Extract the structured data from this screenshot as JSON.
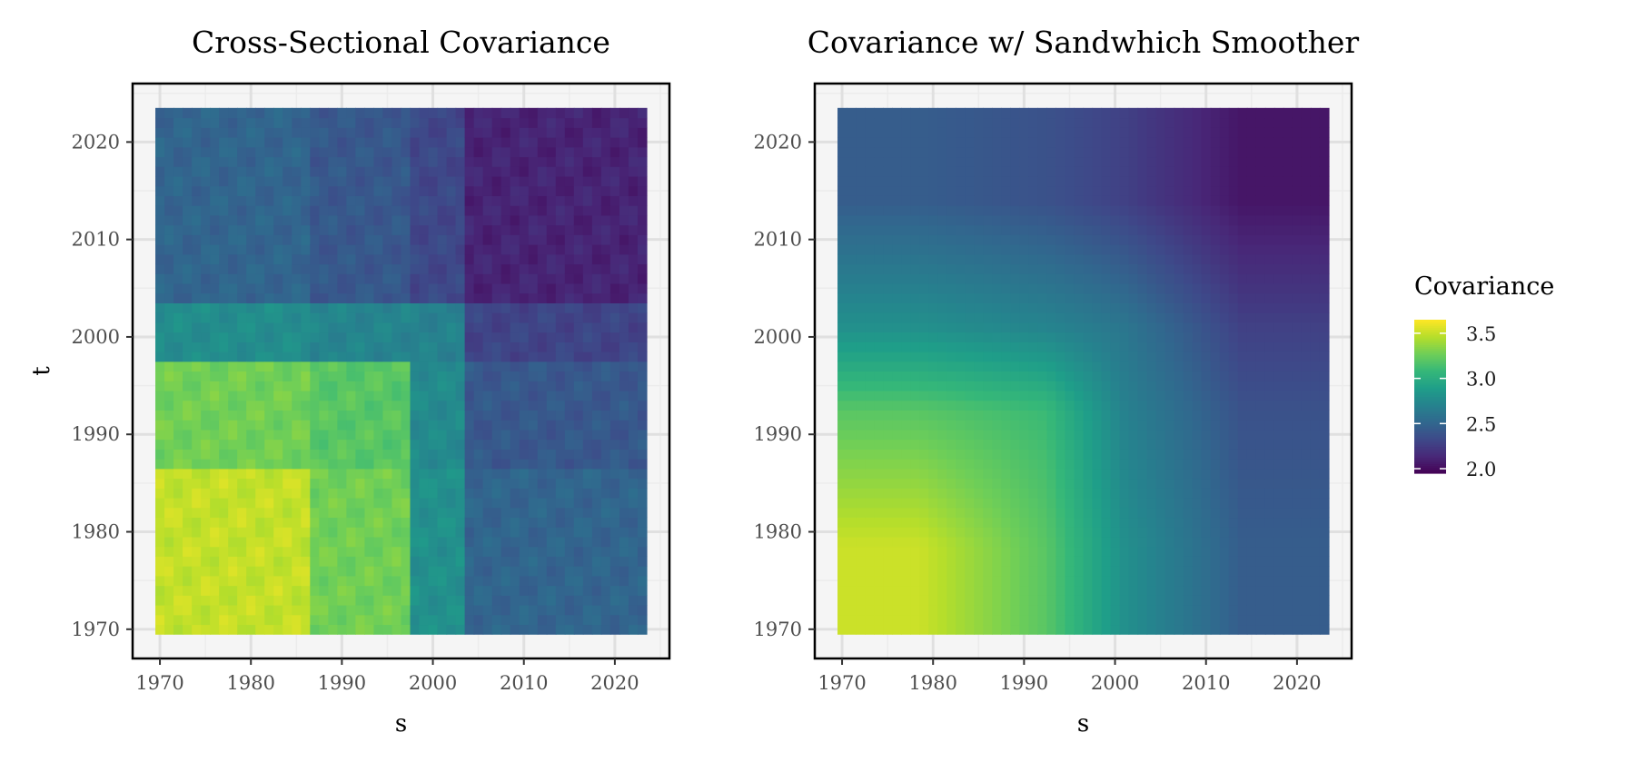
{
  "chart_data": [
    {
      "type": "heatmap",
      "title": "Cross-Sectional Covariance",
      "xlabel": "s",
      "ylabel": "t",
      "xlim": [
        1967,
        2026
      ],
      "ylim": [
        1967,
        2026
      ],
      "x_ticks": [
        "1970",
        "1980",
        "1990",
        "2000",
        "2010",
        "2020"
      ],
      "y_ticks": [
        "1970",
        "1980",
        "1990",
        "2000",
        "2010",
        "2020"
      ],
      "x_range": [
        1970,
        2023
      ],
      "y_range": [
        1970,
        2023
      ],
      "grid": true,
      "block_edges": [
        1970,
        1987,
        1998,
        2004,
        2024
      ],
      "block_values": [
        [
          3.5,
          3.28,
          2.78,
          2.5
        ],
        [
          3.28,
          3.2,
          2.72,
          2.42
        ],
        [
          2.8,
          2.76,
          2.7,
          2.32
        ],
        [
          2.5,
          2.42,
          2.3,
          2.12
        ]
      ],
      "texture": true
    },
    {
      "type": "heatmap",
      "title": "Covariance w/ Sandwhich Smoother",
      "xlabel": "s",
      "ylabel": "",
      "xlim": [
        1967,
        2026
      ],
      "ylim": [
        1967,
        2026
      ],
      "x_ticks": [
        "1970",
        "1980",
        "1990",
        "2000",
        "2010",
        "2020"
      ],
      "y_ticks": [
        "1970",
        "1980",
        "1990",
        "2000",
        "2010",
        "2020"
      ],
      "x_range": [
        1970,
        2023
      ],
      "y_range": [
        1970,
        2023
      ],
      "grid": true,
      "block_edges": [
        1970,
        1987,
        1998,
        2004,
        2024
      ],
      "block_values": [
        [
          3.52,
          3.2,
          2.8,
          2.45
        ],
        [
          3.2,
          3.1,
          2.72,
          2.38
        ],
        [
          2.8,
          2.7,
          2.62,
          2.28
        ],
        [
          2.45,
          2.38,
          2.28,
          2.05
        ]
      ],
      "texture": false
    }
  ],
  "legend": {
    "title": "Covariance",
    "placement": "right",
    "range": [
      1.95,
      3.65
    ],
    "ticks": [
      {
        "value": 3.5,
        "label": "3.5"
      },
      {
        "value": 3.0,
        "label": "3.0"
      },
      {
        "value": 2.5,
        "label": "2.5"
      },
      {
        "value": 2.0,
        "label": "2.0"
      }
    ]
  },
  "colors": {
    "palette": [
      "#440154",
      "#482878",
      "#3e4989",
      "#31688e",
      "#26828e",
      "#1f9e89",
      "#35b779",
      "#6ece58",
      "#b5de2b",
      "#fde725"
    ],
    "panel_background": "#f5f5f5",
    "grid_major": "#e0e0e0",
    "grid_minor": "#ececec",
    "border": "#000000"
  }
}
